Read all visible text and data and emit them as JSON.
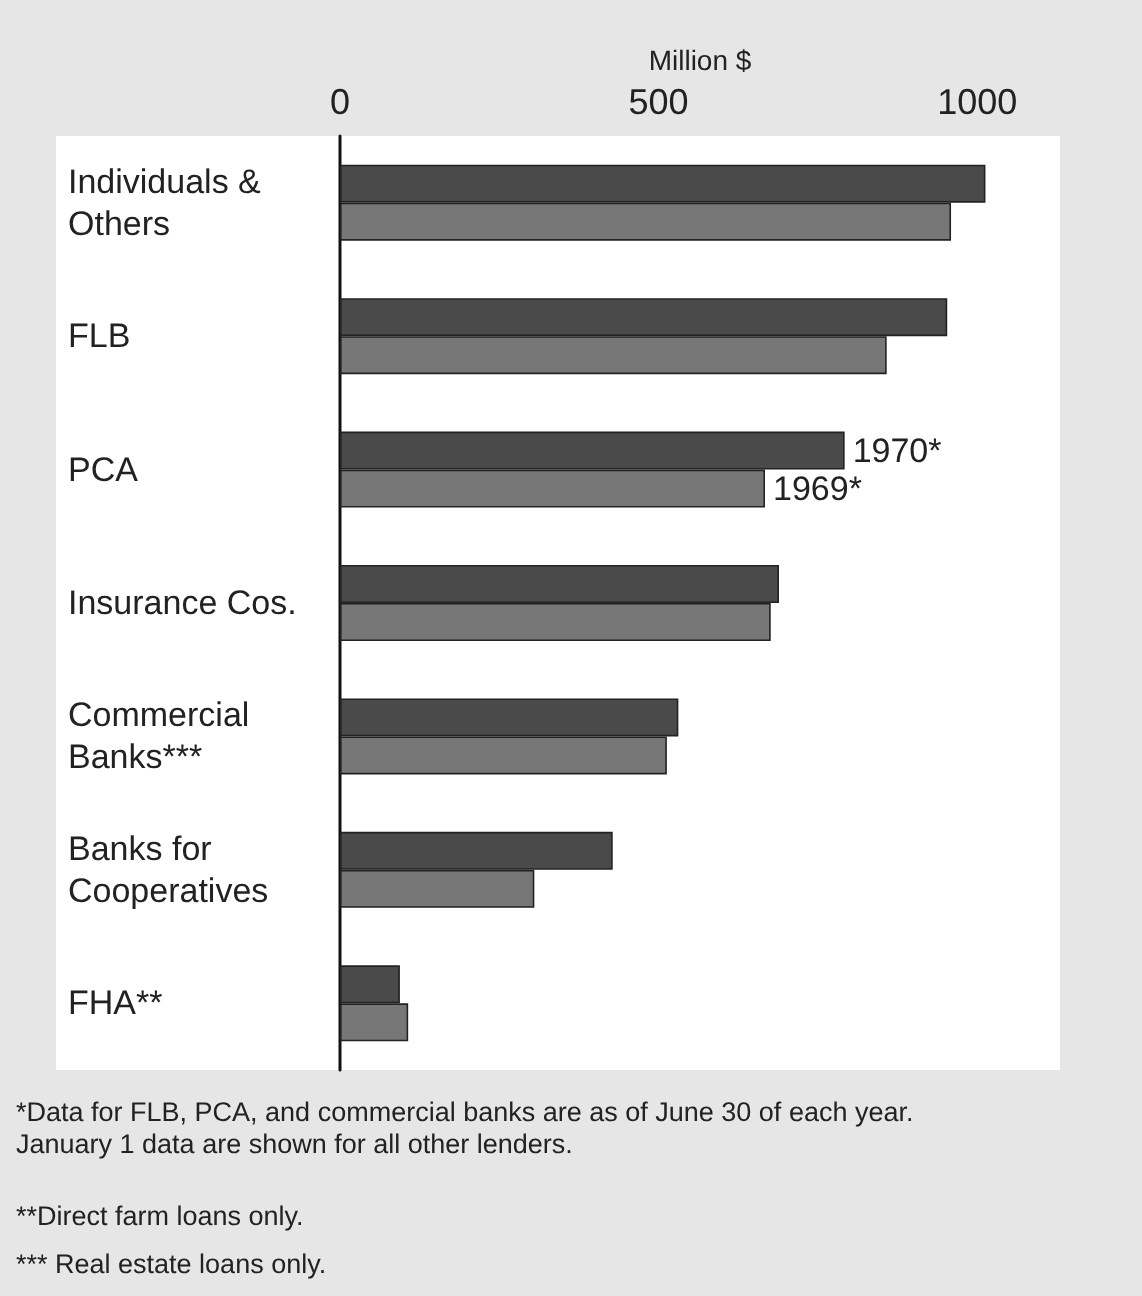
{
  "chart_data": {
    "type": "bar",
    "orientation": "horizontal",
    "xlabel": "Million $",
    "categories": [
      "Individuals & Others",
      "FLB",
      "PCA",
      "Insurance Cos.",
      "Commercial Banks***",
      "Banks for Cooperatives",
      "FHA**"
    ],
    "series": [
      {
        "color": "#4a4a4a",
        "values": [
          1013,
          953,
          792,
          689,
          531,
          428,
          94
        ]
      },
      {
        "color": "#777777",
        "values": [
          959,
          858,
          667,
          676,
          513,
          305,
          107
        ]
      }
    ],
    "xlim": [
      0,
      1130
    ],
    "xticks": [
      0,
      500,
      1000
    ],
    "grid": false,
    "annotations": [
      {
        "text": "1970*",
        "x": 792,
        "y": "PCA"
      },
      {
        "text": "1969*",
        "x": 667,
        "y": "PCA"
      },
      "*Data for FLB, PCA, and commercial banks are as of June 30 of each year. January 1 data are shown for all other lenders.",
      "**Direct farm loans only.",
      "*** Real estate loans only."
    ]
  }
}
